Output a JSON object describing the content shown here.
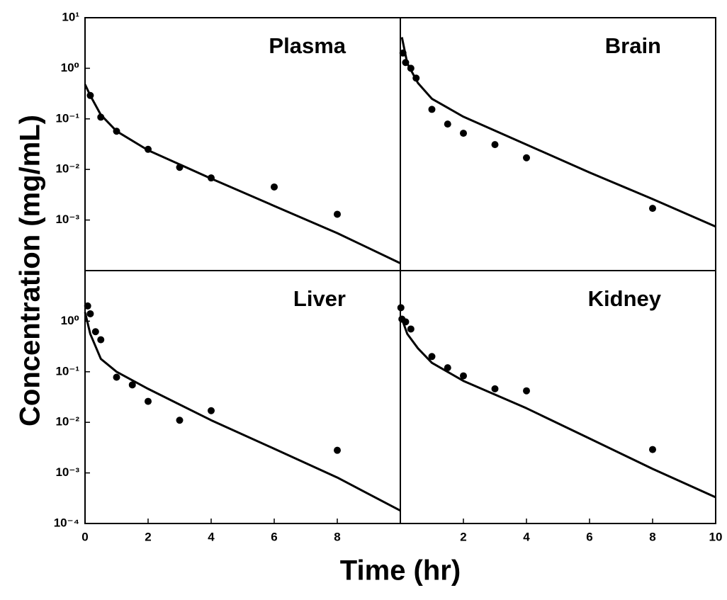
{
  "xlabel": "Time (hr)",
  "ylabel": "Concentration (mg/mL)",
  "chart_data": [
    {
      "type": "scatter",
      "title": "Plasma",
      "log_y": true,
      "color": "#000000",
      "xlim": [
        0,
        10
      ],
      "ylim": [
        0.0001,
        10
      ],
      "yticks": [
        {
          "value": 10,
          "label": "10¹"
        },
        {
          "value": 1,
          "label": "10⁰"
        },
        {
          "value": 0.1,
          "label": "10⁻¹"
        },
        {
          "value": 0.01,
          "label": "10⁻²"
        },
        {
          "value": 0.001,
          "label": "10⁻³"
        }
      ],
      "x": [
        0.167,
        0.5,
        1,
        2,
        3,
        4,
        6,
        8
      ],
      "values": [
        0.29,
        0.108,
        0.057,
        0.025,
        0.011,
        0.0068,
        0.0045,
        0.0013
      ],
      "fit": {
        "x": [
          0,
          0.167,
          0.5,
          1,
          2,
          4,
          6,
          8,
          10
        ],
        "values": [
          0.48,
          0.29,
          0.12,
          0.057,
          0.024,
          0.0066,
          0.0019,
          0.00055,
          0.00014
        ]
      }
    },
    {
      "type": "scatter",
      "title": "Brain",
      "log_y": true,
      "color": "#000000",
      "xlim": [
        0,
        10
      ],
      "ylim": [
        0.0001,
        10
      ],
      "x": [
        0.083,
        0.167,
        0.333,
        0.5,
        1,
        1.5,
        2,
        3,
        4,
        8
      ],
      "values": [
        2.0,
        1.3,
        1.0,
        0.64,
        0.154,
        0.079,
        0.052,
        0.031,
        0.017,
        0.0017
      ],
      "fit": {
        "x": [
          0.05,
          0.22,
          0.56,
          1,
          2,
          4,
          6,
          8,
          10
        ],
        "values": [
          4.1,
          1.25,
          0.51,
          0.25,
          0.11,
          0.031,
          0.0087,
          0.0026,
          0.00074
        ]
      }
    },
    {
      "type": "scatter",
      "title": "Liver",
      "log_y": true,
      "color": "#000000",
      "xlim": [
        0,
        10
      ],
      "ylim": [
        0.0001,
        10
      ],
      "xticks": [
        0,
        2,
        4,
        6,
        8
      ],
      "yticks": [
        {
          "value": 1,
          "label": "10⁰"
        },
        {
          "value": 0.1,
          "label": "10⁻¹"
        },
        {
          "value": 0.01,
          "label": "10⁻²"
        },
        {
          "value": 0.001,
          "label": "10⁻³"
        },
        {
          "value": 0.0001,
          "label": "10⁻⁴"
        }
      ],
      "x": [
        0.083,
        0.167,
        0.333,
        0.5,
        1,
        1.5,
        2,
        3,
        4,
        8
      ],
      "values": [
        2.0,
        1.4,
        0.62,
        0.43,
        0.078,
        0.055,
        0.026,
        0.011,
        0.017,
        0.0028
      ],
      "fit": {
        "x": [
          0,
          0.167,
          0.5,
          1,
          2,
          4,
          6,
          8,
          10
        ],
        "values": [
          1.5,
          0.56,
          0.18,
          0.1,
          0.046,
          0.011,
          0.003,
          0.00081,
          0.00018
        ]
      }
    },
    {
      "type": "scatter",
      "title": "Kidney",
      "log_y": true,
      "color": "#000000",
      "xlim": [
        0,
        10
      ],
      "ylim": [
        0.0001,
        10
      ],
      "xticks": [
        2,
        4,
        6,
        8,
        10
      ],
      "x": [
        0.017,
        0.05,
        0.167,
        0.333,
        1,
        1.5,
        2,
        3,
        4,
        8
      ],
      "values": [
        1.85,
        1.1,
        0.97,
        0.7,
        0.2,
        0.12,
        0.083,
        0.046,
        0.042,
        0.0029
      ],
      "fit": {
        "x": [
          0.02,
          0.22,
          0.56,
          1,
          2,
          4,
          6,
          8,
          10
        ],
        "values": [
          1.25,
          0.56,
          0.29,
          0.15,
          0.066,
          0.019,
          0.0048,
          0.0012,
          0.00033
        ]
      }
    }
  ]
}
